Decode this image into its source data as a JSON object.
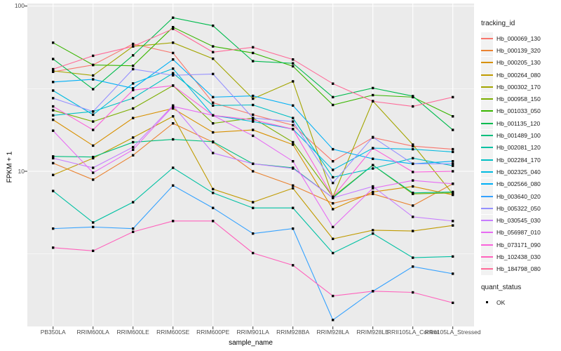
{
  "chart_data": {
    "type": "line",
    "title": "",
    "xlabel": "sample_name",
    "ylabel": "FPKM + 1",
    "y_scale": "log10",
    "y_ticks": [
      100,
      10
    ],
    "y_minor_gridlines": [
      31.6,
      3.16
    ],
    "ylim": [
      1.15,
      103
    ],
    "grid": "on",
    "legend_position": "right",
    "point_shape": "filled-square",
    "point_color": "#000000",
    "panel_background": "#EBEBEB",
    "gridline_color": "#FFFFFF",
    "categories": [
      "PB350LA",
      "RRIM600LA",
      "RRIM600LE",
      "RRIM600SE",
      "RRIM600PE",
      "RRIM901LA",
      "RRIM928BA",
      "RRIM928LA",
      "RRIM928LE",
      "RRII105LA_Control",
      "RRII105LA_Stressed"
    ],
    "series": [
      {
        "name": "Hb_000069_130",
        "color": "#F8766D",
        "values": [
          40,
          44,
          59,
          52,
          26,
          22,
          19,
          11.5,
          16,
          14.2,
          13.6
        ]
      },
      {
        "name": "Hb_000139_320",
        "color": "#EA8331",
        "values": [
          11.2,
          8.9,
          12.5,
          19.5,
          15,
          10,
          8.2,
          6.4,
          7.3,
          6.2,
          8.4
        ]
      },
      {
        "name": "Hb_000205_130",
        "color": "#D89000",
        "values": [
          20.5,
          14.3,
          21,
          24,
          17.2,
          17.8,
          14.5,
          5.9,
          7.5,
          8.1,
          7.2
        ]
      },
      {
        "name": "Hb_000264_080",
        "color": "#C09B00",
        "values": [
          9.5,
          12,
          16,
          21.5,
          7.8,
          6.5,
          7.9,
          3.9,
          4.4,
          4.35,
          4.7
        ]
      },
      {
        "name": "Hb_000302_170",
        "color": "#A3A500",
        "values": [
          40.5,
          38,
          57,
          60,
          48,
          27.5,
          35,
          7.0,
          26.6,
          14.5,
          7.3
        ]
      },
      {
        "name": "Hb_000958_150",
        "color": "#7CAE00",
        "values": [
          23.4,
          20,
          24,
          33,
          19.5,
          21,
          15,
          7.0,
          10.9,
          7.3,
          7.4
        ]
      },
      {
        "name": "Hb_001033_050",
        "color": "#39B600",
        "values": [
          60,
          44,
          43.5,
          74.5,
          57,
          52,
          43.2,
          25.2,
          28.9,
          28.1,
          21.5
        ]
      },
      {
        "name": "Hb_001135_120",
        "color": "#00BB4E",
        "values": [
          47.8,
          31.4,
          50.3,
          85,
          76,
          46.4,
          45,
          28.1,
          31.9,
          28.5,
          17.8
        ]
      },
      {
        "name": "Hb_001489_100",
        "color": "#00BF7D",
        "values": [
          12.3,
          12.2,
          15,
          15.6,
          15.1,
          11.1,
          10.5,
          6.9,
          10.9,
          7.4,
          7.5
        ]
      },
      {
        "name": "Hb_002081_120",
        "color": "#00C1A3",
        "values": [
          7.6,
          4.9,
          6.5,
          10.5,
          7.4,
          6.0,
          6.0,
          3.2,
          4.2,
          3.0,
          3.05
        ]
      },
      {
        "name": "Hb_002284_170",
        "color": "#00BFC4",
        "values": [
          21.8,
          23,
          27.7,
          39.2,
          25,
          25.2,
          21,
          9.2,
          10.4,
          12,
          10.8
        ]
      },
      {
        "name": "Hb_002325_040",
        "color": "#00BAE0",
        "values": [
          30.8,
          22,
          34,
          41.8,
          21.8,
          20,
          18,
          10.2,
          13.8,
          13.6,
          13.1
        ]
      },
      {
        "name": "Hb_002566_080",
        "color": "#00B0F6",
        "values": [
          34.7,
          36,
          31.8,
          47.5,
          28.1,
          28.6,
          25,
          13.6,
          11.9,
          11.1,
          11.5
        ]
      },
      {
        "name": "Hb_003640_020",
        "color": "#35A2FF",
        "values": [
          4.5,
          4.6,
          4.5,
          8.2,
          6.0,
          4.2,
          4.5,
          1.26,
          1.88,
          2.65,
          2.4
        ]
      },
      {
        "name": "Hb_005322_050",
        "color": "#9590FF",
        "values": [
          27.7,
          23,
          41.5,
          38.1,
          38.8,
          21,
          20,
          8.5,
          16.1,
          11.1,
          11.1
        ]
      },
      {
        "name": "Hb_030545_030",
        "color": "#C77CFF",
        "values": [
          12.0,
          10.5,
          14,
          25,
          12.9,
          11.1,
          10.4,
          6.9,
          8.1,
          5.3,
          5.0
        ]
      },
      {
        "name": "Hb_056987_010",
        "color": "#E76BF3",
        "values": [
          17.6,
          9.8,
          13.5,
          24.7,
          21.8,
          16.4,
          11.5,
          4.6,
          7.9,
          8.8,
          8.4
        ]
      },
      {
        "name": "Hb_073171_090",
        "color": "#FA62DB",
        "values": [
          24.7,
          17.8,
          31,
          33,
          21.8,
          20.5,
          18,
          7.0,
          13.8,
          9.9,
          10.0
        ]
      },
      {
        "name": "Hb_102438_030",
        "color": "#FF62BC",
        "values": [
          3.45,
          3.3,
          4.3,
          5.0,
          5.0,
          3.2,
          2.7,
          1.76,
          1.88,
          1.85,
          1.6
        ]
      },
      {
        "name": "Hb_184798_080",
        "color": "#FF6A98",
        "values": [
          41.5,
          50,
          57,
          72.8,
          52.6,
          56.3,
          47.5,
          33.9,
          26.5,
          24.7,
          28.1
        ]
      }
    ],
    "legend": {
      "color_title": "tracking_id",
      "shape_title": "quant_status",
      "shape_items": [
        {
          "label": "OK",
          "shape": "square",
          "color": "#000000"
        }
      ]
    }
  }
}
